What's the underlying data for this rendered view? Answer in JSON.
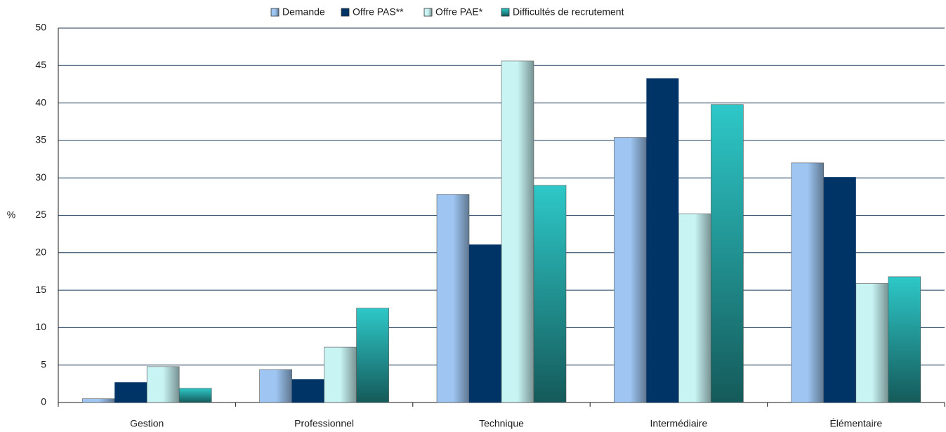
{
  "chart_data": {
    "type": "bar",
    "ylabel": "%",
    "categories": [
      "Gestion",
      "Professionnel",
      "Technique",
      "Intermédiaire",
      "Élémentaire"
    ],
    "series": [
      {
        "name": "Demande",
        "color": "#9fc6f2",
        "values": [
          0.5,
          4.4,
          27.8,
          35.4,
          32.0
        ]
      },
      {
        "name": "Offre PAS**",
        "color": "#003366",
        "values": [
          2.7,
          3.1,
          21.1,
          43.3,
          30.1
        ]
      },
      {
        "name": "Offre PAE*",
        "color": "#c8f4f4",
        "values": [
          4.8,
          7.4,
          45.6,
          25.2,
          15.9
        ]
      },
      {
        "name": "Difficultés de recrutement",
        "color": "#2ec8c8",
        "values": [
          1.9,
          12.6,
          29.0,
          39.8,
          16.8
        ]
      }
    ],
    "ylim": [
      0,
      50
    ],
    "yticks": [
      0,
      5,
      10,
      15,
      20,
      25,
      30,
      35,
      40,
      45,
      50
    ],
    "grid": true,
    "legend": "top"
  }
}
